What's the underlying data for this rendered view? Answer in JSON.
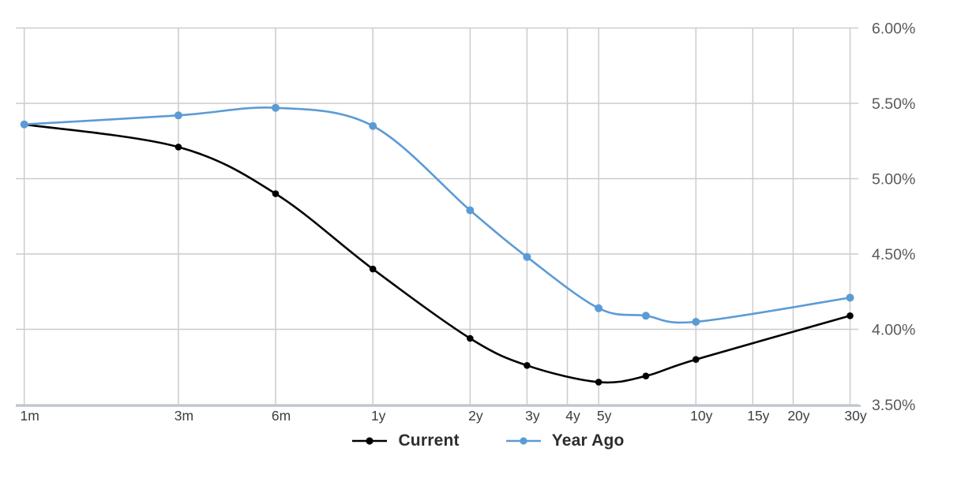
{
  "chart_data": {
    "type": "line",
    "title": "",
    "x_scale": "logarithmic-maturity",
    "grid": true,
    "legend_position": "bottom-center",
    "ylim": [
      3.5,
      6.0
    ],
    "x_ticks": [
      {
        "label": "1m",
        "months": 1
      },
      {
        "label": "3m",
        "months": 3
      },
      {
        "label": "6m",
        "months": 6
      },
      {
        "label": "1y",
        "months": 12
      },
      {
        "label": "2y",
        "months": 24
      },
      {
        "label": "3y",
        "months": 36
      },
      {
        "label": "4y",
        "months": 48
      },
      {
        "label": "5y",
        "months": 60
      },
      {
        "label": "10y",
        "months": 120
      },
      {
        "label": "15y",
        "months": 180
      },
      {
        "label": "20y",
        "months": 240
      },
      {
        "label": "30y",
        "months": 360
      }
    ],
    "y_ticks": [
      {
        "label": "6.00%",
        "value": 6.0
      },
      {
        "label": "5.50%",
        "value": 5.5
      },
      {
        "label": "5.00%",
        "value": 5.0
      },
      {
        "label": "4.50%",
        "value": 4.5
      },
      {
        "label": "4.00%",
        "value": 4.0
      },
      {
        "label": "3.50%",
        "value": 3.5
      }
    ],
    "series": [
      {
        "name": "Current",
        "color": "#000000",
        "marker_radius": 4.3,
        "line_width": 2.6,
        "points": [
          {
            "maturity": "1m",
            "months": 1,
            "yield_pct": 5.36
          },
          {
            "maturity": "3m",
            "months": 3,
            "yield_pct": 5.21
          },
          {
            "maturity": "6m",
            "months": 6,
            "yield_pct": 4.9
          },
          {
            "maturity": "1y",
            "months": 12,
            "yield_pct": 4.4
          },
          {
            "maturity": "2y",
            "months": 24,
            "yield_pct": 3.94
          },
          {
            "maturity": "3y",
            "months": 36,
            "yield_pct": 3.76
          },
          {
            "maturity": "5y",
            "months": 60,
            "yield_pct": 3.65
          },
          {
            "maturity": "7y",
            "months": 84,
            "yield_pct": 3.69
          },
          {
            "maturity": "10y",
            "months": 120,
            "yield_pct": 3.8
          },
          {
            "maturity": "30y",
            "months": 360,
            "yield_pct": 4.09
          }
        ]
      },
      {
        "name": "Year Ago",
        "color": "#5B9BD5",
        "marker_radius": 5.0,
        "line_width": 2.6,
        "points": [
          {
            "maturity": "1m",
            "months": 1,
            "yield_pct": 5.36
          },
          {
            "maturity": "3m",
            "months": 3,
            "yield_pct": 5.42
          },
          {
            "maturity": "6m",
            "months": 6,
            "yield_pct": 5.47
          },
          {
            "maturity": "1y",
            "months": 12,
            "yield_pct": 5.35
          },
          {
            "maturity": "2y",
            "months": 24,
            "yield_pct": 4.79
          },
          {
            "maturity": "3y",
            "months": 36,
            "yield_pct": 4.48
          },
          {
            "maturity": "5y",
            "months": 60,
            "yield_pct": 4.14
          },
          {
            "maturity": "7y",
            "months": 84,
            "yield_pct": 4.09
          },
          {
            "maturity": "10y",
            "months": 120,
            "yield_pct": 4.05
          },
          {
            "maturity": "30y",
            "months": 360,
            "yield_pct": 4.21
          }
        ]
      }
    ]
  },
  "colors": {
    "background": "#ffffff",
    "grid": "#cccccc",
    "axis_line": "#bcc6d2",
    "x_tick_text": "#3d3d3d",
    "y_tick_text": "#595959",
    "legend_text": "#2d2d2d",
    "series_current": "#000000",
    "series_year_ago": "#5B9BD5"
  }
}
